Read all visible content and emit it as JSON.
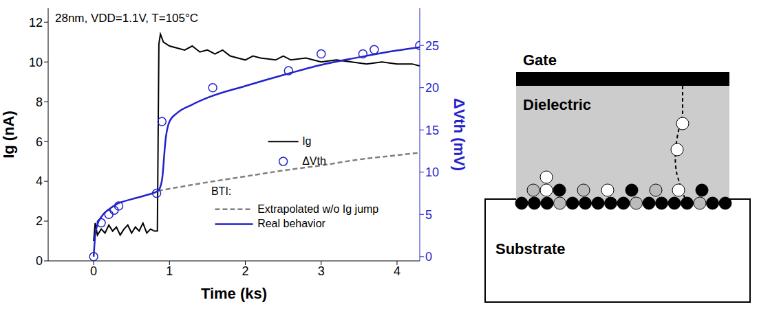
{
  "chart_data": {
    "type": "line",
    "annotation": "28nm, VDD=1.1V, T=105°C",
    "x_label": "Time (ks)",
    "y_label": "Ig (nA)",
    "y2_label": "ΔVth (mV)",
    "xlim": [
      -0.6,
      4.3
    ],
    "xticks": [
      0,
      1,
      2,
      3,
      4
    ],
    "ylim": [
      0,
      12.7
    ],
    "yticks": [
      0,
      2,
      4,
      6,
      8,
      10,
      12
    ],
    "y2lim": [
      -0.5,
      29.4
    ],
    "y2ticks": [
      0,
      5,
      10,
      15,
      20,
      25
    ],
    "grid": false,
    "legend": "center",
    "legend_title": "BTI:",
    "series": [
      {
        "name": "Ig",
        "type": "line",
        "color": "#000000",
        "x": [
          0,
          0.02,
          0.05,
          0.1,
          0.15,
          0.2,
          0.25,
          0.3,
          0.35,
          0.4,
          0.45,
          0.5,
          0.55,
          0.6,
          0.65,
          0.7,
          0.75,
          0.8,
          0.84,
          0.86,
          0.88,
          0.92,
          1.0,
          1.1,
          1.2,
          1.3,
          1.4,
          1.5,
          1.6,
          1.7,
          1.8,
          1.9,
          2.0,
          2.1,
          2.2,
          2.4,
          2.5,
          2.6,
          2.8,
          3.0,
          3.2,
          3.4,
          3.6,
          3.8,
          4.0,
          4.2,
          4.3
        ],
        "values": [
          1.0,
          1.9,
          1.3,
          1.6,
          1.4,
          1.8,
          1.5,
          1.7,
          1.3,
          1.6,
          1.8,
          1.4,
          1.7,
          1.5,
          1.9,
          1.4,
          1.6,
          1.5,
          1.5,
          10.9,
          11.4,
          11.0,
          10.8,
          10.7,
          10.6,
          10.8,
          10.5,
          10.6,
          10.4,
          10.6,
          10.3,
          10.2,
          10.1,
          10.3,
          10.2,
          10.1,
          10.3,
          10.1,
          10.2,
          10.0,
          10.1,
          10.0,
          9.9,
          10.0,
          9.9,
          9.9,
          9.8
        ]
      },
      {
        "name": "ΔVth",
        "type": "scatter",
        "marker": "circle",
        "axis": "y2",
        "color": "#2222cc",
        "x": [
          0,
          0.1,
          0.2,
          0.27,
          0.33,
          0.83,
          0.9,
          1.57,
          2.57,
          3.0,
          3.55,
          3.7,
          4.3
        ],
        "values": [
          0,
          4,
          5,
          5.5,
          6,
          7.5,
          16,
          20,
          22,
          24,
          24,
          24.5,
          25
        ]
      },
      {
        "name": "Extrapolated w/o Ig jump",
        "type": "line",
        "line_style": "dashed",
        "axis": "y2",
        "color": "#808080",
        "x": [
          0.85,
          1.5,
          2.0,
          2.5,
          3.0,
          3.5,
          4.0,
          4.3
        ],
        "values": [
          7.8,
          8.8,
          9.5,
          10.2,
          10.8,
          11.5,
          12.0,
          12.3
        ]
      },
      {
        "name": "Real behavior",
        "type": "line",
        "line_style": "solid",
        "axis": "y2",
        "color": "#2222cc",
        "x": [
          0,
          0.02,
          0.05,
          0.1,
          0.2,
          0.3,
          0.5,
          0.7,
          0.85,
          0.9,
          0.95,
          1.0,
          1.1,
          1.3,
          1.5,
          2.0,
          2.5,
          3.0,
          3.5,
          4.0,
          4.3
        ],
        "values": [
          0,
          2.5,
          3.8,
          4.7,
          5.6,
          6.2,
          6.8,
          7.3,
          7.8,
          9,
          14,
          16,
          17,
          18,
          18.8,
          20.2,
          21.5,
          22.7,
          23.6,
          24.4,
          24.8
        ]
      }
    ]
  },
  "diagram": {
    "labels": {
      "gate": "Gate",
      "dielectric": "Dielectric",
      "substrate": "Substrate"
    }
  }
}
